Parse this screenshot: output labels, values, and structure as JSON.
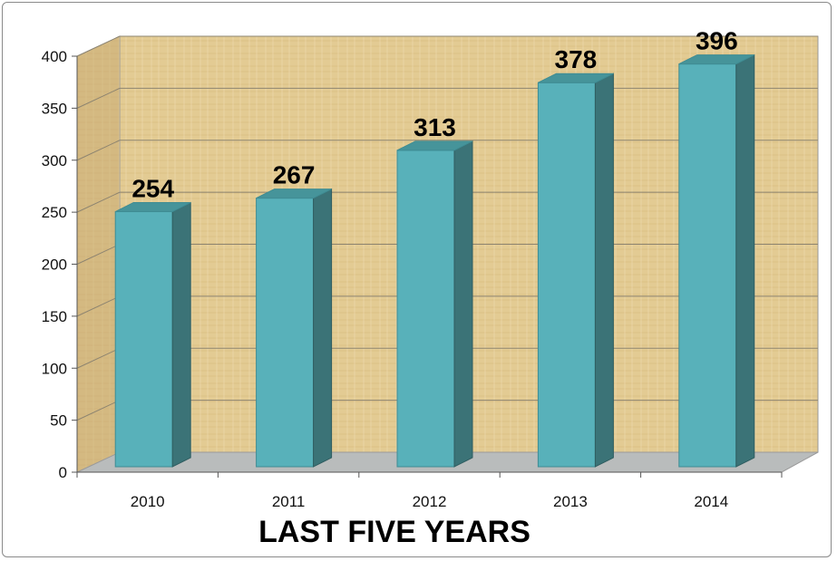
{
  "chart_data": {
    "type": "bar",
    "categories": [
      "2010",
      "2011",
      "2012",
      "2013",
      "2014"
    ],
    "values": [
      254,
      267,
      313,
      378,
      396
    ],
    "xlabel": "LAST FIVE YEARS",
    "ylabel": "",
    "ylim": [
      0,
      400
    ],
    "yticks": [
      0,
      50,
      100,
      150,
      200,
      250,
      300,
      350,
      400
    ],
    "grid": true,
    "style": "3d-column",
    "colors": {
      "bar_front": "#58b1ba",
      "bar_side": "#3b7377",
      "bar_top": "#46949a",
      "wall": "#e2c98f",
      "side_wall": "#c8ab72",
      "floor": "#b9bcbc",
      "gridline": "#8d8470"
    }
  }
}
